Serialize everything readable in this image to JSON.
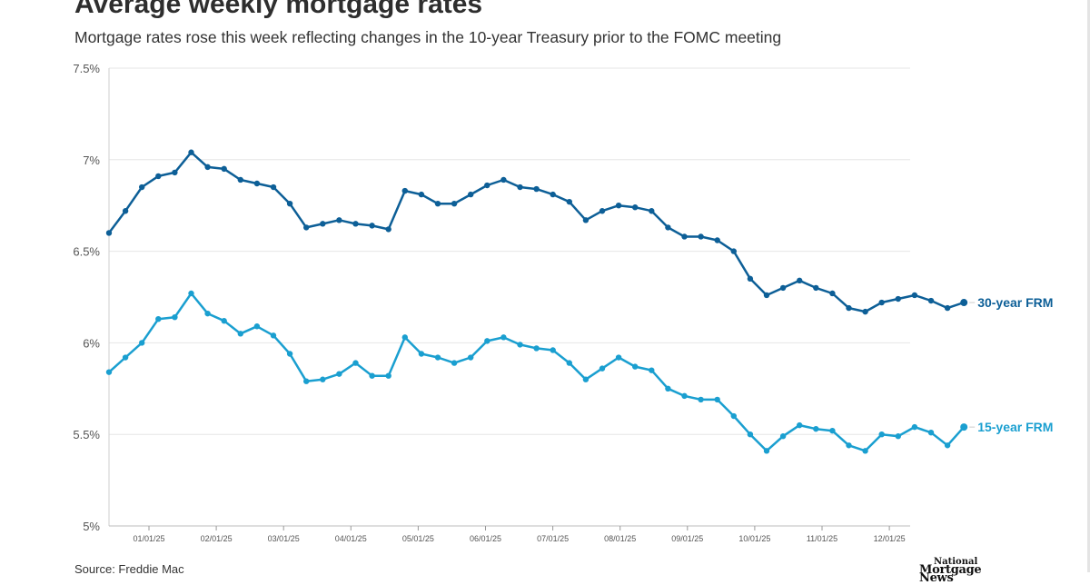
{
  "header": {
    "title": "Average weekly mortgage rates",
    "subtitle": "Mortgage rates rose this week reflecting changes in the 10-year Treasury prior to the FOMC meeting"
  },
  "footer": {
    "source": "Source: Freddie Mac",
    "logo_line1": "National",
    "logo_line2": "Mortgage News"
  },
  "chart_data": {
    "type": "line",
    "ylim": [
      5,
      7.5
    ],
    "y_ticks": [
      "5%",
      "5.5%",
      "6%",
      "6.5%",
      "7%",
      "7.5%"
    ],
    "x_ticks": [
      "01/01/25",
      "02/01/25",
      "03/01/25",
      "04/01/25",
      "05/01/25",
      "06/01/25",
      "07/01/25",
      "08/01/25",
      "09/01/25",
      "10/01/25",
      "11/01/25",
      "12/01/25"
    ],
    "grid": true,
    "colors": {
      "frm30": "#0d5f97",
      "frm15": "#1a9fd0"
    },
    "series": [
      {
        "name": "30-year FRM",
        "values": [
          6.6,
          6.72,
          6.85,
          6.91,
          6.93,
          7.04,
          6.96,
          6.95,
          6.89,
          6.87,
          6.85,
          6.76,
          6.63,
          6.65,
          6.67,
          6.65,
          6.64,
          6.62,
          6.83,
          6.81,
          6.76,
          6.76,
          6.81,
          6.86,
          6.89,
          6.85,
          6.84,
          6.81,
          6.77,
          6.67,
          6.72,
          6.75,
          6.74,
          6.72,
          6.63,
          6.58,
          6.58,
          6.56,
          6.5,
          6.35,
          6.26,
          6.3,
          6.34,
          6.3,
          6.27,
          6.19,
          6.17,
          6.22,
          6.24,
          6.26,
          6.23,
          6.19,
          6.22
        ]
      },
      {
        "name": "15-year FRM",
        "values": [
          5.84,
          5.92,
          6.0,
          6.13,
          6.14,
          6.27,
          6.16,
          6.12,
          6.05,
          6.09,
          6.04,
          5.94,
          5.79,
          5.8,
          5.83,
          5.89,
          5.82,
          5.82,
          6.03,
          5.94,
          5.92,
          5.89,
          5.92,
          6.01,
          6.03,
          5.99,
          5.97,
          5.96,
          5.89,
          5.8,
          5.86,
          5.92,
          5.87,
          5.85,
          5.75,
          5.71,
          5.69,
          5.69,
          5.6,
          5.5,
          5.41,
          5.49,
          5.55,
          5.53,
          5.52,
          5.44,
          5.41,
          5.5,
          5.49,
          5.54,
          5.51,
          5.44,
          5.54
        ]
      }
    ]
  }
}
